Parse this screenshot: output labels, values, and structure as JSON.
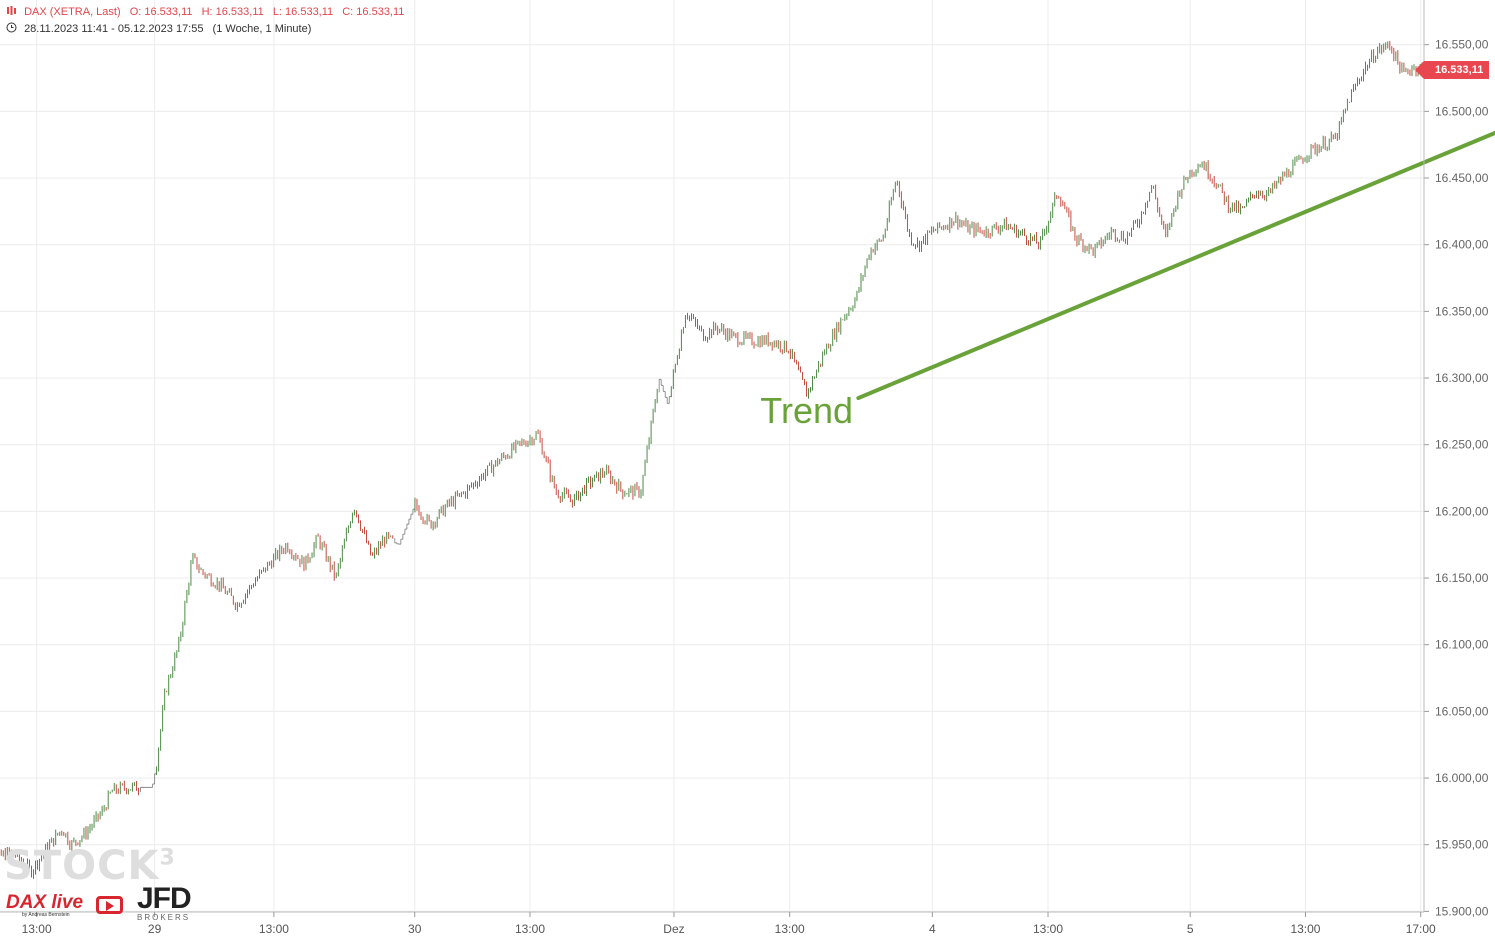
{
  "header": {
    "instrument": "DAX (XETRA, Last)",
    "open": "O: 16.533,11",
    "high": "H: 16.533,11",
    "low": "L: 16.533,11",
    "close": "C: 16.533,11",
    "range": "28.11.2023 11:41 - 05.12.2023 17:55",
    "interval": "(1 Woche, 1 Minute)"
  },
  "last_price_label": "16.533,11",
  "annotation": "Trend",
  "watermark": "STOCK",
  "watermark_sup": "3",
  "logos": {
    "dax_live": "DAX live",
    "dax_live_sub": "by Andreas Bernstein",
    "jfd": "JFD",
    "jfd_sub": "BROKERS"
  },
  "colors": {
    "up": "#3a7d32",
    "down": "#c0392b",
    "trend": "#6aa23a",
    "badge": "#e8474f",
    "header": "#e0474c"
  },
  "chart_data": {
    "type": "line",
    "title": "DAX (XETRA, Last)",
    "interval": "1 Minute",
    "ylim": [
      15890,
      16570
    ],
    "yticks": [
      15900,
      15950,
      16000,
      16050,
      16100,
      16150,
      16200,
      16250,
      16300,
      16350,
      16400,
      16450,
      16500,
      16550
    ],
    "ytick_labels": [
      "15.900,00",
      "15.950,00",
      "16.000,00",
      "16.050,00",
      "16.100,00",
      "16.150,00",
      "16.200,00",
      "16.250,00",
      "16.300,00",
      "16.350,00",
      "16.400,00",
      "16.450,00",
      "16.500,00",
      "16.550,00"
    ],
    "xticks": [
      {
        "label": "13:00",
        "t": 1.33
      },
      {
        "label": "29",
        "t": 3.96
      },
      {
        "label": "13:00",
        "t": 6.62
      },
      {
        "label": "30",
        "t": 9.76
      },
      {
        "label": "13:00",
        "t": 12.33
      },
      {
        "label": "Dez",
        "t": 15.54
      },
      {
        "label": "13:00",
        "t": 18.12
      },
      {
        "label": "4",
        "t": 21.3
      },
      {
        "label": "13:00",
        "t": 23.88
      },
      {
        "label": "5",
        "t": 27.05
      },
      {
        "label": "13:00",
        "t": 29.62
      },
      {
        "label": "17:00",
        "t": 32.19
      }
    ],
    "x_unit": "trading hours from start",
    "series": [
      {
        "x": [
          0,
          0.4,
          0.8,
          1.2,
          1.5,
          1.9,
          2.1,
          2.4,
          2.8,
          3.0,
          3.3,
          3.6,
          3.9,
          4.0,
          4.2,
          4.5,
          4.8,
          5.0,
          5.4,
          5.8,
          6.2,
          6.5,
          6.9,
          7.3,
          7.6,
          8.0,
          8.4,
          8.8,
          9.1,
          9.4,
          9.76,
          10.1,
          10.5,
          10.9,
          11.3,
          11.7,
          12.1,
          12.5,
          12.9,
          13.3,
          13.6,
          14.0,
          14.4,
          14.8,
          15.2,
          15.4,
          15.6,
          15.8,
          16.2,
          16.5,
          16.9,
          17.3,
          17.7,
          18.1,
          18.5,
          18.9,
          19.3,
          19.6,
          19.9,
          20.2,
          20.5,
          20.8,
          21.0,
          21.3,
          21.6,
          21.8,
          22.1,
          22.5,
          22.9,
          23.3,
          23.7,
          24.1,
          24.5,
          24.9,
          25.3,
          25.6,
          25.9,
          26.2,
          26.5,
          26.8,
          27.05,
          27.3,
          27.6,
          27.9,
          28.2,
          28.5,
          28.8,
          29.1,
          29.4,
          29.7,
          30.0,
          30.3,
          30.6,
          30.9,
          31.2,
          31.5,
          31.8,
          32.0,
          32.2,
          32.4,
          32.6,
          32.8
        ],
        "y": [
          15952,
          15940,
          15945,
          15930,
          15945,
          15962,
          15950,
          15958,
          15975,
          15990,
          15993,
          15993,
          15993,
          16010,
          16065,
          16100,
          16165,
          16155,
          16145,
          16130,
          16148,
          16160,
          16175,
          16160,
          16180,
          16150,
          16205,
          16165,
          16180,
          16175,
          16205,
          16190,
          16205,
          16215,
          16228,
          16240,
          16250,
          16258,
          16215,
          16208,
          16220,
          16230,
          16215,
          16215,
          16300,
          16280,
          16315,
          16350,
          16332,
          16338,
          16330,
          16328,
          16328,
          16322,
          16288,
          16320,
          16345,
          16360,
          16395,
          16405,
          16450,
          16405,
          16400,
          16410,
          16415,
          16420,
          16412,
          16410,
          16415,
          16408,
          16400,
          16440,
          16405,
          16395,
          16410,
          16405,
          16418,
          16445,
          16405,
          16440,
          16455,
          16462,
          16448,
          16430,
          16425,
          16440,
          16438,
          16450,
          16460,
          16470,
          16475,
          16480,
          16510,
          16530,
          16545,
          16550,
          16528,
          16533,
          16533,
          16533,
          16533,
          16533
        ]
      }
    ],
    "trendline": {
      "start": {
        "t": 19.65,
        "y": 16285
      },
      "end": {
        "t": 34.0,
        "y": 16486
      }
    },
    "last_value": 16533.11
  }
}
